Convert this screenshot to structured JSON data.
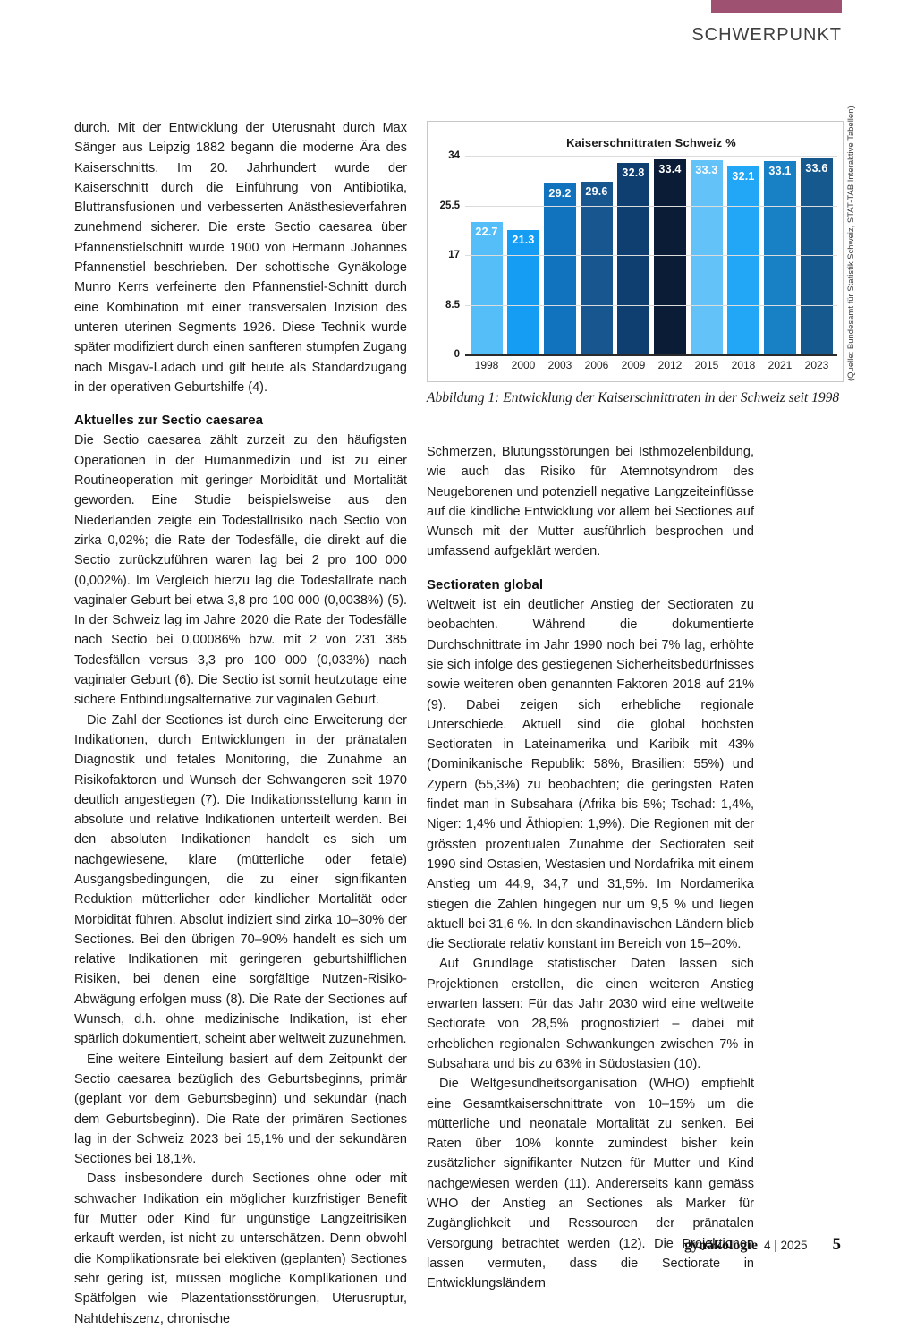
{
  "header": {
    "kicker": "SCHWERPUNKT",
    "accent_color": "#9e5170"
  },
  "chart_data": {
    "type": "bar",
    "title": "Kaiserschnittraten Schweiz %",
    "categories": [
      "1998",
      "2000",
      "2003",
      "2006",
      "2009",
      "2012",
      "2015",
      "2018",
      "2021",
      "2023"
    ],
    "values": [
      22.7,
      21.3,
      29.2,
      29.6,
      32.8,
      33.4,
      33.3,
      32.1,
      33.1,
      33.6
    ],
    "bar_colors": [
      "#55bdf8",
      "#149df2",
      "#1173bd",
      "#17568e",
      "#0f3f70",
      "#0a1c36",
      "#63c3f8",
      "#22a7f7",
      "#1880c4",
      "#15598f"
    ],
    "y_ticks": [
      0,
      8.5,
      17,
      25.5,
      34
    ],
    "y_tick_labels": [
      "0",
      "8.5",
      "17",
      "25.5",
      "34"
    ],
    "ylim": [
      0,
      34
    ],
    "grid": true,
    "xlabel": "",
    "ylabel": "",
    "legend": "none"
  },
  "figure": {
    "caption": "Abbildung 1: Entwicklung der Kaiserschnittraten in der Schweiz seit 1998",
    "source_note": "(Quelle: Bundesamt für Statistik Schweiz, STAT-TAB Interaktive Tabellen)"
  },
  "left_column": {
    "p1": "durch. Mit der Entwicklung der Uterusnaht durch Max Sänger aus Leipzig 1882 begann die moderne Ära des Kaiserschnitts. Im 20. Jahrhundert wurde der Kaiserschnitt durch die Einführung von Antibiotika, Bluttransfusionen und verbesserten Anästhesieverfahren zunehmend sicherer. Die erste Sectio caesarea über Pfannenstielschnitt wurde 1900 von Hermann Johannes Pfannenstiel beschrieben. Der schottische Gynäkologe Munro Kerrs verfeinerte den Pfannenstiel-Schnitt durch eine Kombination mit einer transversalen Inzision des unteren uterinen Segments 1926. Diese Technik wurde später modifiziert durch einen sanfteren stumpfen Zugang nach Misgav-Ladach und gilt heute als Standardzugang in der operativen Geburtshilfe (4).",
    "heading": "Aktuelles zur Sectio caesarea",
    "p2": "Die Sectio caesarea zählt zurzeit zu den häufigsten Operationen in der Humanmedizin und ist zu einer Routineoperation mit geringer Morbidität und Mortalität geworden. Eine Studie beispielsweise aus den Niederlanden zeigte ein Todesfallrisiko nach Sectio von zirka 0,02%; die Rate der Todesfälle, die direkt auf die Sectio zurückzuführen waren lag bei 2 pro 100 000 (0,002%). Im Vergleich hierzu lag die Todesfallrate nach vaginaler Geburt bei etwa 3,8 pro 100 000 (0,0038%) (5). In der Schweiz lag im Jahre 2020 die Rate der Todesfälle nach Sectio bei 0,00086% bzw. mit 2 von 231 385 Todesfällen versus 3,3 pro 100 000 (0,033%) nach vaginaler Geburt (6). Die Sectio ist somit heutzutage eine sichere Entbindungsalternative zur vaginalen Geburt.",
    "p3": "Die Zahl der Sectiones ist durch eine Erweiterung der Indikationen, durch Entwicklungen in der pränatalen Diagnostik und fetales Monitoring, die Zunahme an Risikofaktoren und Wunsch der Schwangeren seit 1970 deutlich angestiegen (7). Die Indikationsstellung kann in absolute und relative Indikationen unterteilt werden. Bei den absoluten Indikationen handelt es sich um nachgewiesene, klare (mütterliche oder fetale) Ausgangsbedingungen, die zu einer signifikanten Reduktion mütterlicher oder kindlicher Mortalität oder Morbidität führen. Absolut indiziert sind zirka 10–30% der Sectiones. Bei den übrigen 70–90% handelt es sich um relative Indikationen mit geringeren geburtshilflichen Risiken, bei denen eine sorgfältige Nutzen-Risiko-Abwägung erfolgen muss (8). Die Rate der Sectiones auf Wunsch, d.h. ohne medizinische Indikation, ist eher spärlich dokumentiert, scheint aber weltweit zuzunehmen.",
    "p4": "Eine weitere Einteilung basiert auf dem Zeitpunkt der Sectio caesarea bezüglich des Geburtsbeginns, primär (geplant vor dem Geburtsbeginn) und sekundär (nach dem Geburtsbeginn). Die Rate der primären Sectiones lag in der Schweiz 2023 bei 15,1% und der sekundären Sectiones bei 18,1%.",
    "p5": "Dass insbesondere durch Sectiones ohne oder mit schwacher Indikation ein möglicher kurzfristiger Benefit für Mutter oder Kind für ungünstige Langzeitrisiken erkauft werden, ist nicht zu unterschätzen. Denn obwohl die Komplikationsrate bei elektiven (geplanten) Sectiones sehr gering ist, müssen mögliche Komplikationen und Spätfolgen wie Plazentationsstörungen, Uterusruptur, Nahtdehiszenz, chronische"
  },
  "right_column": {
    "p1": "Schmerzen, Blutungsstörungen bei Isthmozelenbildung, wie auch das Risiko für Atemnotsyndrom des Neugeborenen und potenziell negative Langzeiteinflüsse auf die kindliche Entwicklung vor allem bei Sectiones auf Wunsch mit der Mutter ausführlich besprochen und umfassend aufgeklärt werden.",
    "heading": "Sectioraten global",
    "p2": "Weltweit ist ein deutlicher Anstieg der Sectioraten zu beobachten. Während die dokumentierte Durchschnittrate im Jahr 1990 noch bei 7% lag, erhöhte sie sich infolge des gestiegenen Sicherheitsbedürfnisses sowie weiteren oben genannten Faktoren 2018 auf 21% (9). Dabei zeigen sich erhebliche regionale Unterschiede. Aktuell sind die global höchsten Sectioraten in Lateinamerika und Karibik mit 43% (Dominikanische Republik: 58%, Brasilien: 55%) und Zypern (55,3%) zu beobachten; die geringsten Raten findet man in Subsahara (Afrika bis 5%; Tschad: 1,4%, Niger: 1,4% und Äthiopien: 1,9%). Die Regionen mit der grössten prozentualen Zunahme der Sectioraten seit 1990 sind Ostasien, Westasien und Nordafrika mit einem Anstieg um 44,9, 34,7 und 31,5%. Im Nordamerika stiegen die Zahlen hingegen nur um 9,5 % und liegen aktuell bei 31,6 %. In den skandinavischen Ländern blieb die Sectiorate relativ konstant im Bereich von 15–20%.",
    "p3": "Auf Grundlage statistischer Daten lassen sich Projektionen erstellen, die einen weiteren Anstieg erwarten lassen: Für das Jahr 2030 wird eine weltweite Sectiorate von 28,5% prognostiziert – dabei mit erheblichen regionalen Schwankungen zwischen 7% in Subsahara und bis zu 63% in Südostasien (10).",
    "p4": "Die Weltgesundheitsorganisation (WHO) empfiehlt eine Gesamtkaiserschnittrate von 10–15% um die mütterliche und neonatale Mortalität zu senken. Bei Raten über 10% konnte zumindest bisher kein zusätzlicher signifikanter Nutzen für Mutter und Kind nachgewiesen werden (11). Andererseits kann gemäss WHO der Anstieg an Sectiones als Marker für Zugänglichkeit und Ressourcen der pränatalen Versorgung betrachtet werden (12). Die Projektionen lassen vermuten, dass die Sectiorate in Entwicklungsländern"
  },
  "footer": {
    "journal": "gynäkologie",
    "issue": "4 | 2025",
    "page": "5"
  }
}
